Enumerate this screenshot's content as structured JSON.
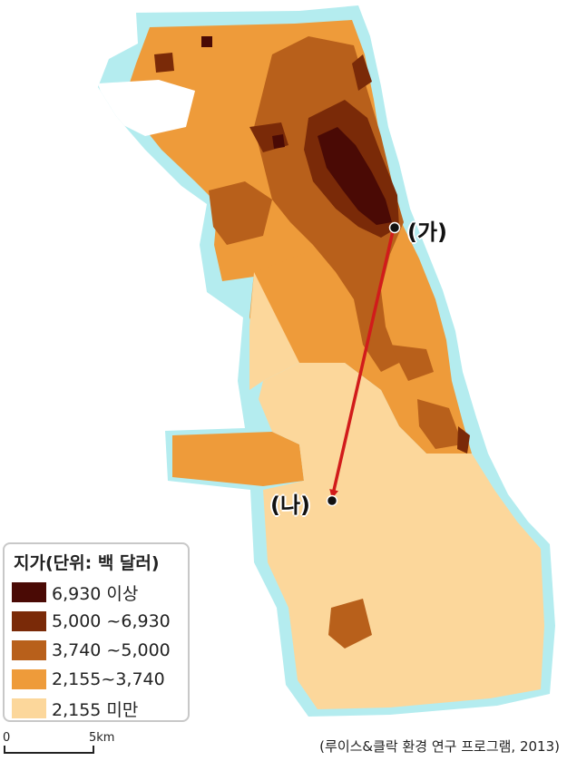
{
  "legend": {
    "title": "지가(단위: 백 달러)",
    "items": [
      {
        "label": "6,930 이상",
        "color": "#4a0a05"
      },
      {
        "label": "5,000 ~6,930",
        "color": "#7a2a08"
      },
      {
        "label": "3,740 ~5,000",
        "color": "#b8601b"
      },
      {
        "label": "2,155~3,740",
        "color": "#ee9b3a"
      },
      {
        "label": "2,155 미만",
        "color": "#fcd79b"
      }
    ]
  },
  "water_color": "#b4ecef",
  "scale": {
    "start": "0",
    "end": "5km"
  },
  "markers": [
    {
      "label": "(가)"
    },
    {
      "label": "(나)"
    }
  ],
  "arrow_color": "#d11b1b",
  "source": "(루이스&클락 환경 연구 프로그램, 2013)"
}
